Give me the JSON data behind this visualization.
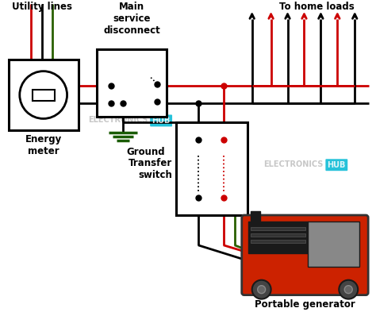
{
  "bg_color": "#ffffff",
  "labels": {
    "utility_lines": "Utility lines",
    "main_service": "Main\nservice\ndisconnect",
    "energy_meter": "Energy\nmeter",
    "ground": "Ground",
    "transfer_switch": "Transfer\nswitch",
    "portable_gen": "Portable generator",
    "to_home_loads": "To home loads",
    "watermark1": "ELECTRONICS",
    "watermark2": "ELECTRONICS",
    "hub": "HUB"
  },
  "colors": {
    "black": "#000000",
    "red": "#cc0000",
    "green": "#2a6000",
    "cyan": "#00b8d4",
    "white": "#ffffff",
    "gray_wm": "#c0c0c0",
    "gen_red": "#cc2200",
    "gen_dark": "#1a1a1a",
    "gen_gray": "#888888",
    "gen_edge": "#333333"
  },
  "figsize": [
    4.74,
    3.93
  ],
  "dpi": 100,
  "lw": 2.0
}
